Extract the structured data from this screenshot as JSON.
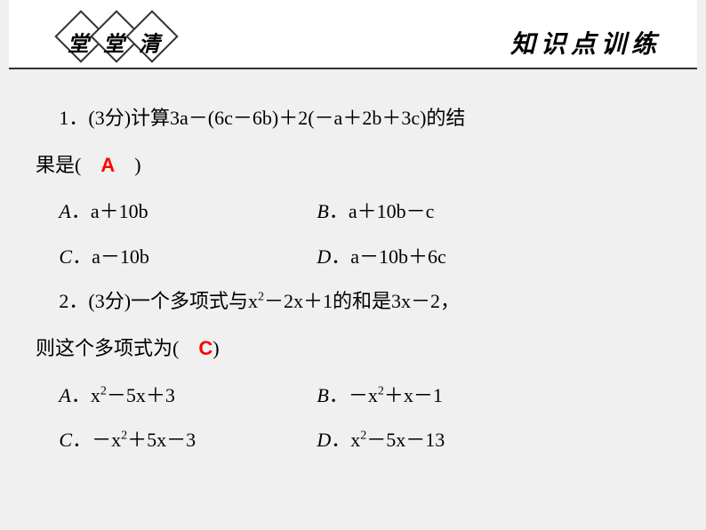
{
  "header": {
    "diamonds": [
      "堂",
      "堂",
      "清"
    ],
    "title": "知识点训练"
  },
  "colors": {
    "background": "#f0f0f0",
    "header_bg": "#ffffff",
    "border": "#333333",
    "text": "#000000",
    "answer": "#ff0000"
  },
  "typography": {
    "body_fontsize": 22,
    "header_title_fontsize": 28,
    "diamond_text_fontsize": 24,
    "line_height": 2.3
  },
  "q1": {
    "prefix": "1．(3分)计算3a－(6c－6b)＋2(－a＋2b＋3c)的结",
    "line2a": "果是(　",
    "answer": "A",
    "line2b": "　)",
    "optA_label": "A",
    "optA": "．a＋10b",
    "optB_label": "B",
    "optB": "．a＋10b－c",
    "optC_label": "C",
    "optC": "．a－10b",
    "optD_label": "D",
    "optD": "．a－10b＋6c"
  },
  "q2": {
    "prefix_a": "2．(3分)一个多项式与x",
    "sup1": "2",
    "prefix_b": "－2x＋1的和是3x－2，",
    "line2a": "则这个多项式为(　",
    "answer": "C",
    "line2b": ")",
    "optA_label": "A",
    "optA_a": "．x",
    "optA_sup": "2",
    "optA_b": "－5x＋3",
    "optB_label": "B",
    "optB_a": "．－x",
    "optB_sup": "2",
    "optB_b": "＋x－1",
    "optC_label": "C",
    "optC_a": "．－x",
    "optC_sup": "2",
    "optC_b": "＋5x－3",
    "optD_label": "D",
    "optD_a": "．x",
    "optD_sup": "2",
    "optD_b": "－5x－13"
  }
}
